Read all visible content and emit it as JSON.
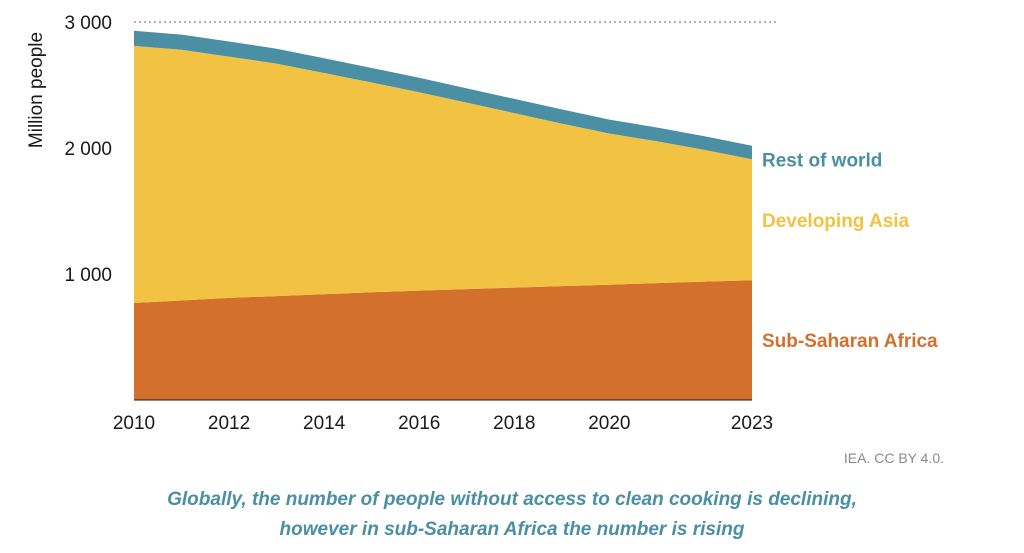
{
  "chart_data": {
    "type": "area",
    "stacked": true,
    "x": [
      2010,
      2011,
      2012,
      2013,
      2014,
      2015,
      2016,
      2017,
      2018,
      2019,
      2020,
      2021,
      2022,
      2023
    ],
    "x_tick_labels": [
      "2010",
      "2012",
      "2014",
      "2016",
      "2018",
      "2020",
      "2023"
    ],
    "y_tick_labels": [
      "1 000",
      "2 000",
      "3 000"
    ],
    "ylabel": "Million people",
    "ylim": [
      0,
      3000
    ],
    "reference_line": 3000,
    "series": [
      {
        "name": "Sub-Saharan Africa",
        "color": "#d2702c",
        "values": [
          770,
          790,
          810,
          825,
          840,
          855,
          868,
          880,
          892,
          904,
          915,
          928,
          940,
          950
        ]
      },
      {
        "name": "Developing Asia",
        "color": "#f2c243",
        "values": [
          2040,
          1990,
          1915,
          1845,
          1755,
          1665,
          1575,
          1480,
          1385,
          1290,
          1200,
          1125,
          1045,
          960
        ]
      },
      {
        "name": "Rest of world",
        "color": "#4a8fa3",
        "values": [
          120,
          120,
          120,
          118,
          118,
          115,
          115,
          113,
          113,
          112,
          110,
          110,
          108,
          108
        ]
      }
    ]
  },
  "credit": "IEA. CC BY 4.0.",
  "caption": {
    "line1": "Globally, the number of people without access to clean cooking is declining,",
    "line2": "however in sub-Saharan Africa the number is rising"
  }
}
